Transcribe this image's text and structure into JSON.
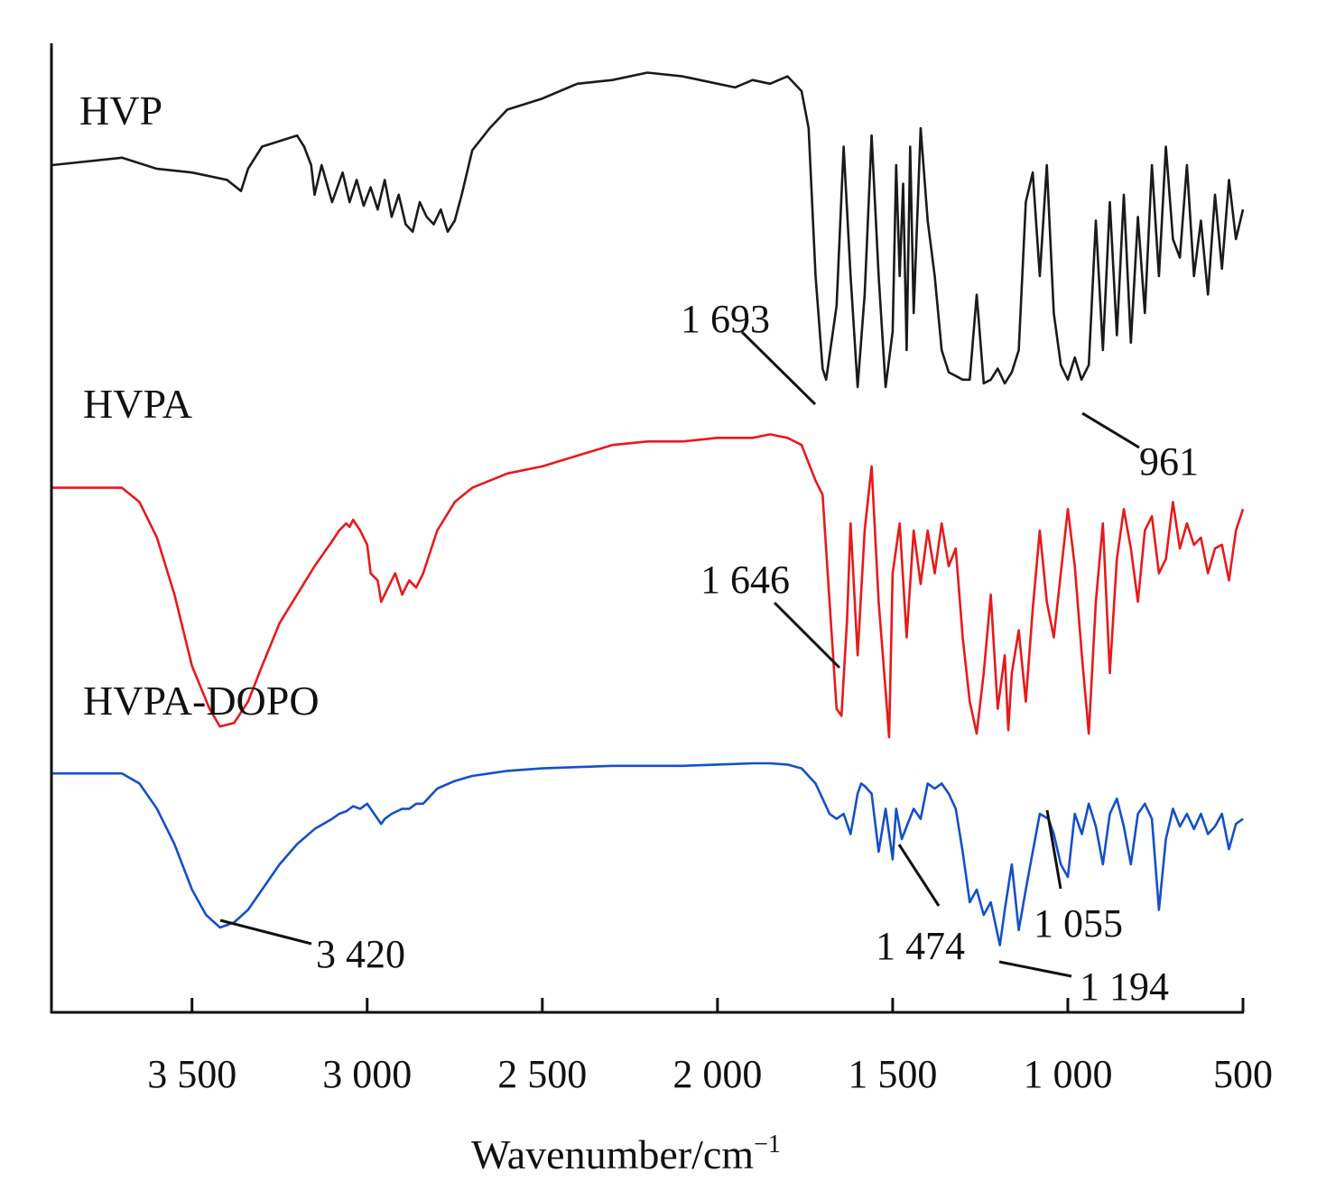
{
  "chart_data": {
    "type": "line",
    "title": "",
    "xlabel": "Wavenumber/cm",
    "xlabel_superscript": "−1",
    "ylabel": "",
    "xlim": [
      3900,
      500
    ],
    "x_reversed": true,
    "y_axis_ticks": false,
    "grid": false,
    "xticks": [
      3500,
      3000,
      2500,
      2000,
      1500,
      1000,
      500
    ],
    "xtick_labels": [
      "3 500",
      "3 000",
      "2 500",
      "2 000",
      "1 500",
      "1 000",
      "500"
    ],
    "colors": {
      "HVP": "#1a1a1a",
      "HVPA": "#e8191b",
      "HVPA-DOPO": "#1450c8"
    },
    "series": [
      {
        "name": "HVP",
        "x": [
          3900,
          3700,
          3600,
          3500,
          3400,
          3360,
          3340,
          3300,
          3200,
          3180,
          3160,
          3150,
          3130,
          3100,
          3070,
          3050,
          3030,
          3010,
          2990,
          2970,
          2950,
          2930,
          2910,
          2890,
          2870,
          2850,
          2830,
          2810,
          2790,
          2770,
          2750,
          2730,
          2700,
          2650,
          2600,
          2500,
          2400,
          2300,
          2200,
          2100,
          2050,
          2000,
          1950,
          1900,
          1850,
          1800,
          1760,
          1740,
          1720,
          1700,
          1690,
          1660,
          1640,
          1620,
          1600,
          1580,
          1560,
          1540,
          1520,
          1500,
          1490,
          1480,
          1470,
          1460,
          1450,
          1440,
          1420,
          1400,
          1380,
          1360,
          1340,
          1320,
          1300,
          1280,
          1260,
          1240,
          1220,
          1200,
          1180,
          1160,
          1140,
          1120,
          1100,
          1080,
          1060,
          1040,
          1020,
          1000,
          980,
          961,
          940,
          920,
          900,
          880,
          860,
          840,
          820,
          800,
          780,
          760,
          740,
          720,
          700,
          680,
          660,
          640,
          620,
          600,
          580,
          560,
          540,
          520,
          500
        ],
        "y": [
          70,
          72,
          69,
          68,
          66,
          63,
          69,
          75,
          78,
          75,
          70,
          62,
          70,
          60,
          68,
          60,
          66,
          59,
          64,
          58,
          66,
          56,
          62,
          54,
          52,
          60,
          56,
          54,
          58,
          52,
          55,
          62,
          74,
          80,
          85,
          88,
          92,
          93,
          95,
          94,
          93,
          92,
          91,
          93,
          92,
          94,
          90,
          80,
          40,
          15,
          12,
          32,
          75,
          40,
          10,
          35,
          78,
          40,
          10,
          25,
          70,
          40,
          65,
          20,
          75,
          30,
          80,
          55,
          40,
          20,
          14,
          13,
          12,
          12,
          35,
          11,
          12,
          15,
          11,
          14,
          20,
          60,
          68,
          40,
          70,
          30,
          16,
          12,
          18,
          12,
          16,
          55,
          20,
          60,
          24,
          62,
          22,
          56,
          30,
          70,
          40,
          75,
          50,
          45,
          70,
          40,
          55,
          35,
          62,
          42,
          66,
          50,
          58
        ]
      },
      {
        "name": "HVPA",
        "x": [
          3900,
          3700,
          3650,
          3600,
          3550,
          3500,
          3450,
          3420,
          3380,
          3340,
          3300,
          3250,
          3200,
          3150,
          3100,
          3080,
          3060,
          3050,
          3040,
          3020,
          3000,
          2990,
          2970,
          2960,
          2940,
          2920,
          2900,
          2880,
          2860,
          2840,
          2800,
          2750,
          2700,
          2650,
          2600,
          2500,
          2400,
          2300,
          2200,
          2100,
          2000,
          1900,
          1850,
          1800,
          1760,
          1720,
          1700,
          1680,
          1660,
          1646,
          1630,
          1620,
          1600,
          1580,
          1560,
          1540,
          1520,
          1510,
          1500,
          1480,
          1460,
          1440,
          1420,
          1400,
          1380,
          1360,
          1340,
          1320,
          1300,
          1280,
          1260,
          1240,
          1220,
          1200,
          1180,
          1170,
          1160,
          1140,
          1120,
          1100,
          1080,
          1060,
          1040,
          1020,
          1000,
          980,
          960,
          940,
          920,
          900,
          880,
          860,
          840,
          820,
          800,
          780,
          760,
          740,
          720,
          700,
          680,
          660,
          640,
          620,
          600,
          580,
          560,
          540,
          520,
          500
        ],
        "y": [
          72,
          72,
          68,
          58,
          42,
          22,
          10,
          5,
          6,
          12,
          22,
          34,
          42,
          50,
          57,
          60,
          62,
          61,
          63,
          60,
          56,
          48,
          46,
          40,
          44,
          48,
          42,
          46,
          44,
          48,
          60,
          68,
          72,
          74,
          76,
          78,
          81,
          84,
          85,
          85,
          86,
          86,
          87,
          86,
          84,
          74,
          70,
          40,
          10,
          8,
          35,
          62,
          25,
          60,
          78,
          40,
          15,
          2,
          48,
          62,
          30,
          60,
          45,
          60,
          48,
          62,
          50,
          55,
          30,
          12,
          3,
          20,
          42,
          10,
          25,
          4,
          20,
          32,
          12,
          38,
          60,
          40,
          30,
          48,
          66,
          50,
          25,
          3,
          40,
          62,
          20,
          52,
          66,
          55,
          40,
          60,
          64,
          48,
          52,
          68,
          55,
          62,
          56,
          58,
          48,
          55,
          56,
          46,
          60,
          66
        ]
      },
      {
        "name": "HVPA-DOPO",
        "x": [
          3900,
          3700,
          3650,
          3600,
          3550,
          3500,
          3460,
          3420,
          3380,
          3340,
          3300,
          3250,
          3200,
          3150,
          3100,
          3080,
          3060,
          3040,
          3020,
          3000,
          2980,
          2960,
          2950,
          2930,
          2900,
          2880,
          2860,
          2840,
          2800,
          2750,
          2700,
          2650,
          2600,
          2500,
          2400,
          2300,
          2200,
          2100,
          2000,
          1900,
          1850,
          1800,
          1760,
          1720,
          1700,
          1680,
          1660,
          1640,
          1620,
          1600,
          1590,
          1580,
          1560,
          1540,
          1520,
          1510,
          1500,
          1490,
          1474,
          1460,
          1440,
          1420,
          1400,
          1380,
          1360,
          1340,
          1320,
          1300,
          1280,
          1260,
          1240,
          1220,
          1194,
          1180,
          1160,
          1140,
          1120,
          1100,
          1080,
          1055,
          1040,
          1020,
          1000,
          980,
          960,
          940,
          920,
          900,
          880,
          860,
          840,
          820,
          800,
          780,
          760,
          740,
          720,
          700,
          680,
          660,
          640,
          620,
          600,
          580,
          560,
          540,
          520,
          500
        ],
        "y": [
          76,
          76,
          72,
          62,
          48,
          30,
          20,
          15,
          17,
          22,
          30,
          40,
          48,
          54,
          58,
          60,
          61,
          63,
          62,
          64,
          60,
          56,
          58,
          60,
          62,
          62,
          64,
          64,
          70,
          73,
          75,
          76,
          77,
          78,
          78.5,
          79,
          79,
          79,
          79.5,
          80,
          80,
          79.5,
          78,
          72,
          66,
          60,
          58,
          60,
          52,
          68,
          72,
          71,
          68,
          45,
          62,
          52,
          42,
          62,
          50,
          55,
          62,
          58,
          72,
          70,
          72,
          68,
          62,
          45,
          25,
          30,
          20,
          25,
          8,
          22,
          40,
          14,
          30,
          45,
          60,
          58,
          52,
          40,
          35,
          60,
          52,
          64,
          55,
          40,
          60,
          66,
          55,
          40,
          60,
          64,
          58,
          22,
          50,
          62,
          55,
          60,
          54,
          60,
          52,
          55,
          60,
          46,
          56,
          58
        ]
      }
    ],
    "series_labels": [
      "HVP",
      "HVPA",
      "HVPA-DOPO"
    ],
    "annotations": [
      {
        "series": "HVP",
        "x": 1693,
        "text": "1 693"
      },
      {
        "series": "HVP",
        "x": 961,
        "text": "961"
      },
      {
        "series": "HVPA",
        "x": 1646,
        "text": "1 646"
      },
      {
        "series": "HVPA-DOPO",
        "x": 3420,
        "text": "3 420"
      },
      {
        "series": "HVPA-DOPO",
        "x": 1474,
        "text": "1 474"
      },
      {
        "series": "HVPA-DOPO",
        "x": 1194,
        "text": "1 194"
      },
      {
        "series": "HVPA-DOPO",
        "x": 1055,
        "text": "1 055"
      }
    ]
  }
}
